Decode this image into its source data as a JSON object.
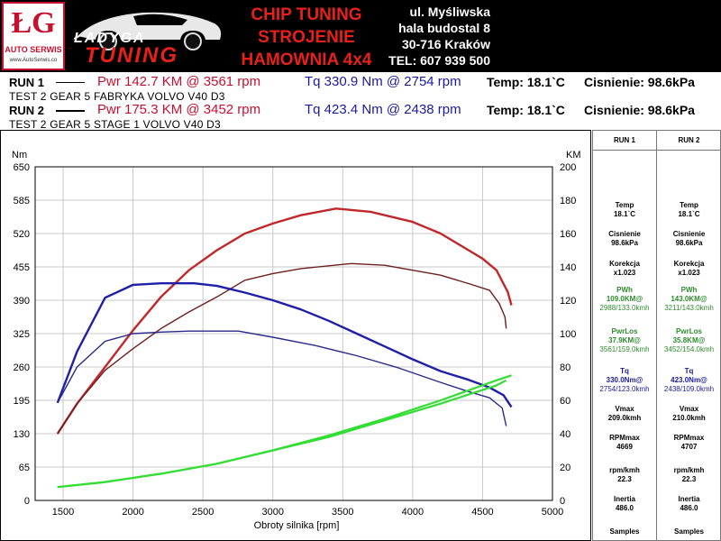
{
  "banner": {
    "logo_letters": "ŁG",
    "logo_sub": "AUTO SERWIS",
    "logo_url": "www.AutoSerwis.co",
    "brand_top": "ŁADYGA",
    "brand_bottom": "TUNING",
    "title_lines": [
      "CHIP TUNING",
      "STROJENIE",
      "HAMOWNIA 4x4"
    ],
    "address_lines": [
      "ul. Myśliwska",
      "hala budostal 8",
      "30-716 Kraków",
      "TEL: 607 939 500"
    ]
  },
  "runs": [
    {
      "name": "RUN 1",
      "pwr": "Pwr  142.7 KM @ 3561 rpm",
      "tq": "Tq 330.9 Nm @ 2754 rpm",
      "temp": "Temp: 18.1`C",
      "pres": "Cisnienie: 98.6kPa",
      "desc": "TEST  2  GEAR 5  FABRYKA VOLVO V40 D3"
    },
    {
      "name": "RUN 2",
      "pwr": "Pwr  175.3 KM @ 3452 rpm",
      "tq": "Tq 423.4 Nm @ 2438 rpm",
      "temp": "Temp: 18.1`C",
      "pres": "Cisnienie: 98.6kPa",
      "desc": "TEST  2  GEAR 5  STAGE 1 VOLVO V40 D3"
    }
  ],
  "side_table": {
    "headers": [
      "RUN 1",
      "RUN 2"
    ],
    "rows": [
      {
        "label": "Temp",
        "v": [
          "18.1`C",
          "18.1`C"
        ],
        "style": "plain"
      },
      {
        "label": "Cisnienie",
        "v": [
          "98.6kPa",
          "98.6kPa"
        ],
        "style": "plain"
      },
      {
        "label": "Korekcja",
        "v": [
          "x1.023",
          "x1.023"
        ],
        "style": "plain"
      },
      {
        "label": "PWh",
        "v": [
          "109.0KM@",
          "143.0KM@"
        ],
        "v2": [
          "2988/133.0kmh",
          "3211/143.0kmh"
        ],
        "style": "green"
      },
      {
        "label": "PwrLos",
        "v": [
          "37.9KM@",
          "35.8KM@"
        ],
        "v2": [
          "3561/159.0kmh",
          "3452/154.0kmh"
        ],
        "style": "green"
      },
      {
        "label": "Tq",
        "v": [
          "330.0Nm@",
          "423.0Nm@"
        ],
        "v2": [
          "2754/123.0kmh",
          "2438/109.0kmh"
        ],
        "style": "blue"
      },
      {
        "label": "Vmax",
        "v": [
          "209.0kmh",
          "210.0kmh"
        ],
        "style": "plain"
      },
      {
        "label": "RPMmax",
        "v": [
          "4669",
          "4707"
        ],
        "style": "plain"
      },
      {
        "label": "rpm/kmh",
        "v": [
          "22.3",
          "22.3"
        ],
        "style": "plain"
      },
      {
        "label": "Inertia",
        "v": [
          "486.0",
          "486.0"
        ],
        "style": "plain"
      },
      {
        "label": "Samples",
        "v": [
          "",
          ""
        ],
        "style": "plain"
      }
    ]
  },
  "colors": {
    "power": "#c0282a",
    "power_loss": "#6e1f1f",
    "torque": "#1f1fa8",
    "torque_stock": "#2a2a8a",
    "loss": "#33dd33",
    "grid": "#c8c8c8"
  },
  "chart_data": {
    "type": "line",
    "xlabel": "Obroty silnika [rpm]",
    "ylabel_left": "Nm",
    "ylabel_right": "KM",
    "x_range": [
      1300,
      5000
    ],
    "x_ticks": [
      1500,
      2000,
      2500,
      3000,
      3500,
      4000,
      4500,
      5000
    ],
    "y_left_range": [
      0,
      650
    ],
    "y_left_ticks": [
      0,
      65,
      130,
      195,
      260,
      325,
      390,
      455,
      520,
      585,
      650
    ],
    "y_right_range": [
      0,
      200
    ],
    "y_right_ticks": [
      0,
      20,
      40,
      60,
      80,
      100,
      120,
      140,
      160,
      180,
      200
    ],
    "grid": true,
    "series": [
      {
        "color_key": "power",
        "axis": "right",
        "x": [
          1460,
          1600,
          1800,
          2000,
          2200,
          2400,
          2600,
          2800,
          3000,
          3200,
          3452,
          3700,
          4000,
          4200,
          4400,
          4500,
          4600,
          4680,
          4707
        ],
        "y": [
          40,
          58,
          80,
          102,
          122,
          138,
          150,
          160,
          166,
          171,
          175,
          173,
          167,
          160,
          150,
          145,
          138,
          125,
          117
        ]
      },
      {
        "color_key": "power_loss",
        "axis": "right",
        "x": [
          1460,
          1600,
          1800,
          2000,
          2200,
          2400,
          2600,
          2800,
          3000,
          3200,
          3561,
          3800,
          4000,
          4200,
          4400,
          4550,
          4620,
          4660,
          4669
        ],
        "y": [
          40,
          58,
          78,
          91,
          103,
          113,
          122,
          132,
          136,
          139,
          142,
          141,
          138,
          135,
          130,
          126,
          118,
          110,
          103
        ]
      },
      {
        "color_key": "torque",
        "axis": "left",
        "x": [
          1460,
          1600,
          1800,
          2000,
          2200,
          2438,
          2600,
          2800,
          3000,
          3200,
          3400,
          3600,
          3800,
          4000,
          4200,
          4400,
          4550,
          4650,
          4707
        ],
        "y": [
          190,
          290,
          395,
          420,
          423,
          423,
          418,
          405,
          390,
          372,
          350,
          325,
          300,
          275,
          252,
          235,
          220,
          205,
          182
        ]
      },
      {
        "color_key": "torque_stock",
        "axis": "left",
        "x": [
          1460,
          1600,
          1800,
          2000,
          2200,
          2400,
          2600,
          2754,
          3000,
          3300,
          3600,
          3900,
          4200,
          4400,
          4550,
          4640,
          4669
        ],
        "y": [
          190,
          260,
          310,
          325,
          328,
          330,
          330,
          330,
          318,
          302,
          282,
          258,
          230,
          212,
          200,
          180,
          145
        ]
      },
      {
        "color_key": "loss",
        "axis": "right",
        "x": [
          1460,
          1800,
          2200,
          2600,
          3000,
          3400,
          3800,
          4200,
          4600,
          4707
        ],
        "y": [
          8,
          11,
          16,
          22,
          30,
          39,
          49,
          60,
          72,
          75
        ]
      },
      {
        "color_key": "loss",
        "axis": "right",
        "x": [
          1460,
          1800,
          2200,
          2600,
          3000,
          3400,
          3800,
          4200,
          4600,
          4669
        ],
        "y": [
          8,
          11,
          16,
          22,
          30,
          38,
          48,
          58,
          69,
          72
        ]
      }
    ]
  }
}
